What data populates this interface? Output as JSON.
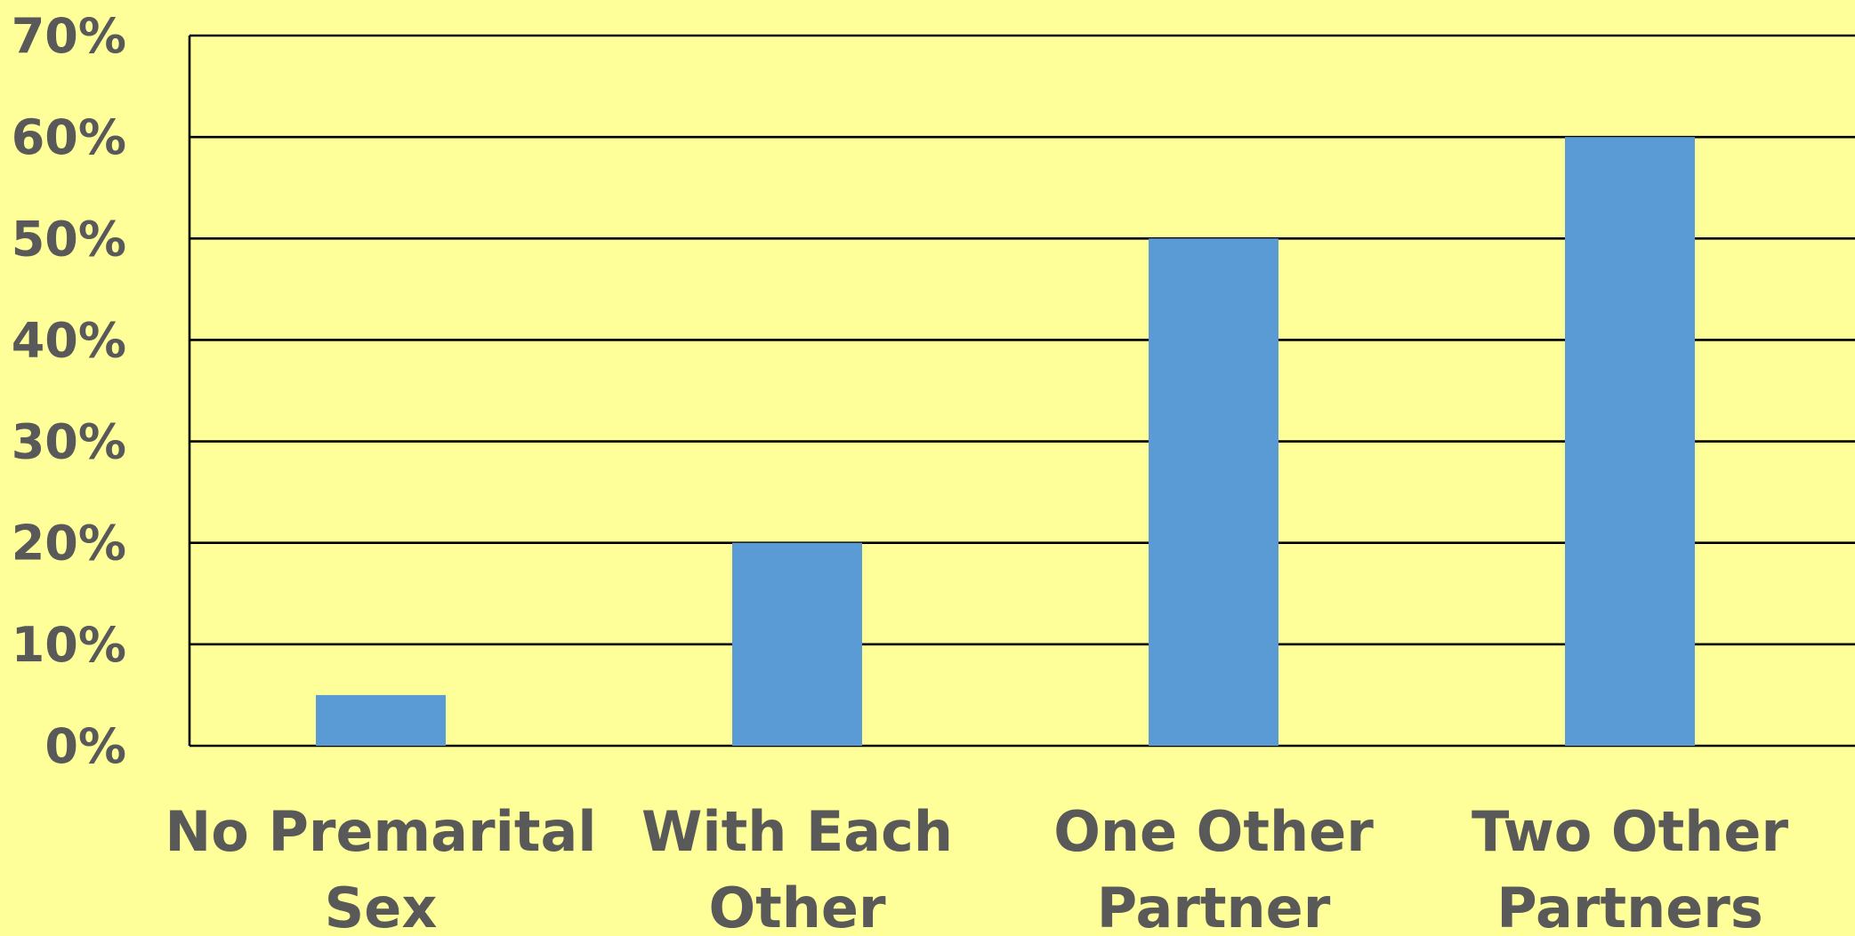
{
  "chart_data": {
    "type": "bar",
    "categories": [
      [
        "No Premarital",
        "Sex"
      ],
      [
        "With Each",
        "Other"
      ],
      [
        "One Other",
        "Partner"
      ],
      [
        "Two Other",
        "Partners"
      ]
    ],
    "values": [
      5,
      20,
      50,
      60
    ],
    "ylim": [
      0,
      70
    ],
    "yticks": [
      0,
      10,
      20,
      30,
      40,
      50,
      60,
      70
    ],
    "ytick_labels": [
      "0%",
      "10%",
      "20%",
      "30%",
      "40%",
      "50%",
      "60%",
      "70%"
    ],
    "title": "",
    "xlabel": "",
    "ylabel": "",
    "grid": true,
    "legend": "none",
    "colors": {
      "background": "#ffff99",
      "bar": "#5b9bd5",
      "gridline": "#000000",
      "text": "#595959"
    }
  }
}
